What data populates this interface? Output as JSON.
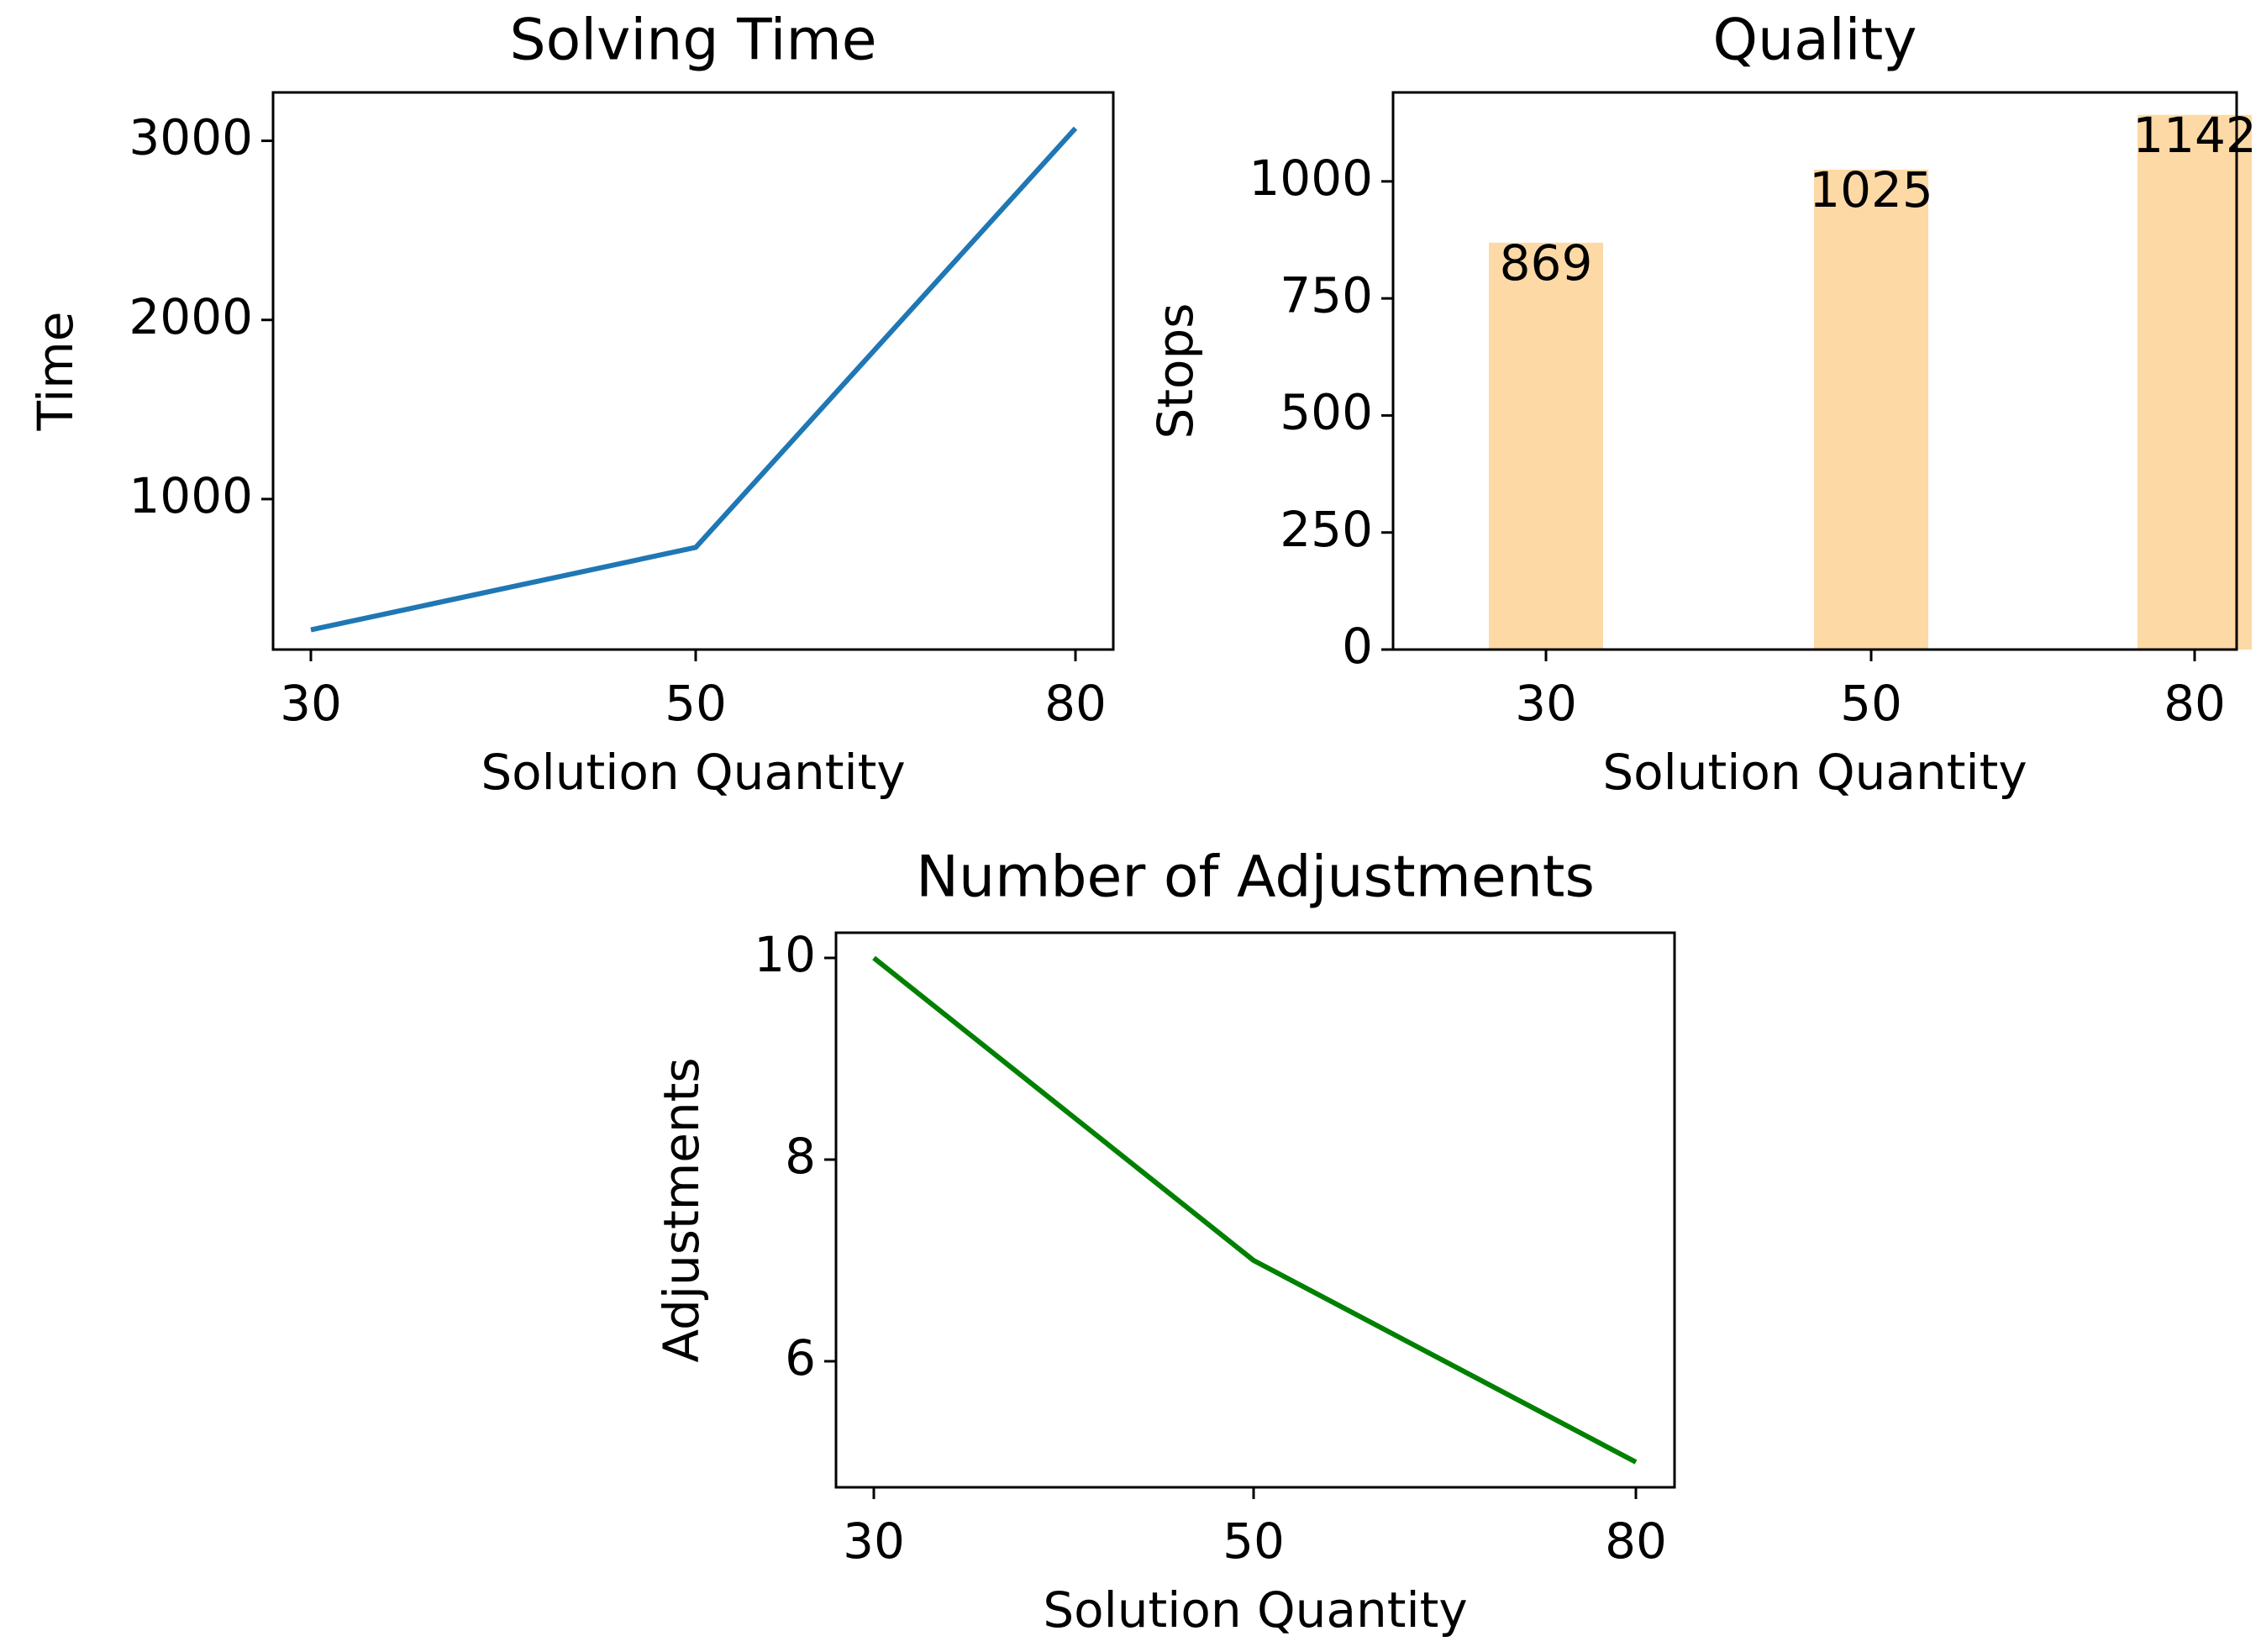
{
  "chart_data": [
    {
      "type": "line",
      "title": "Solving Time",
      "xlabel": "Solution Quantity",
      "ylabel": "Time",
      "categories": [
        "30",
        "50",
        "80"
      ],
      "series": [
        {
          "values": [
            270,
            730,
            3070
          ],
          "color": "#1f77b4"
        }
      ],
      "ylim": [
        160,
        3270
      ],
      "yticks": [
        1000,
        2000,
        3000
      ],
      "grid": false
    },
    {
      "type": "bar",
      "title": "Quality",
      "xlabel": "Solution Quantity",
      "ylabel": "Stops",
      "categories": [
        "30",
        "50",
        "80"
      ],
      "values": [
        869,
        1025,
        1142
      ],
      "data_labels": [
        "869",
        "1025",
        "1142"
      ],
      "bar_color": "#fdd9a5",
      "ylim": [
        0,
        1190
      ],
      "yticks": [
        0,
        250,
        500,
        750,
        1000
      ],
      "grid": false
    },
    {
      "type": "line",
      "title": "Number of Adjustments",
      "xlabel": "Solution Quantity",
      "ylabel": "Adjustments",
      "categories": [
        "30",
        "50",
        "80"
      ],
      "series": [
        {
          "values": [
            10,
            7,
            5
          ],
          "color": "#008000"
        }
      ],
      "ylim": [
        4.75,
        10.25
      ],
      "yticks": [
        6,
        8,
        10
      ],
      "grid": false
    }
  ]
}
